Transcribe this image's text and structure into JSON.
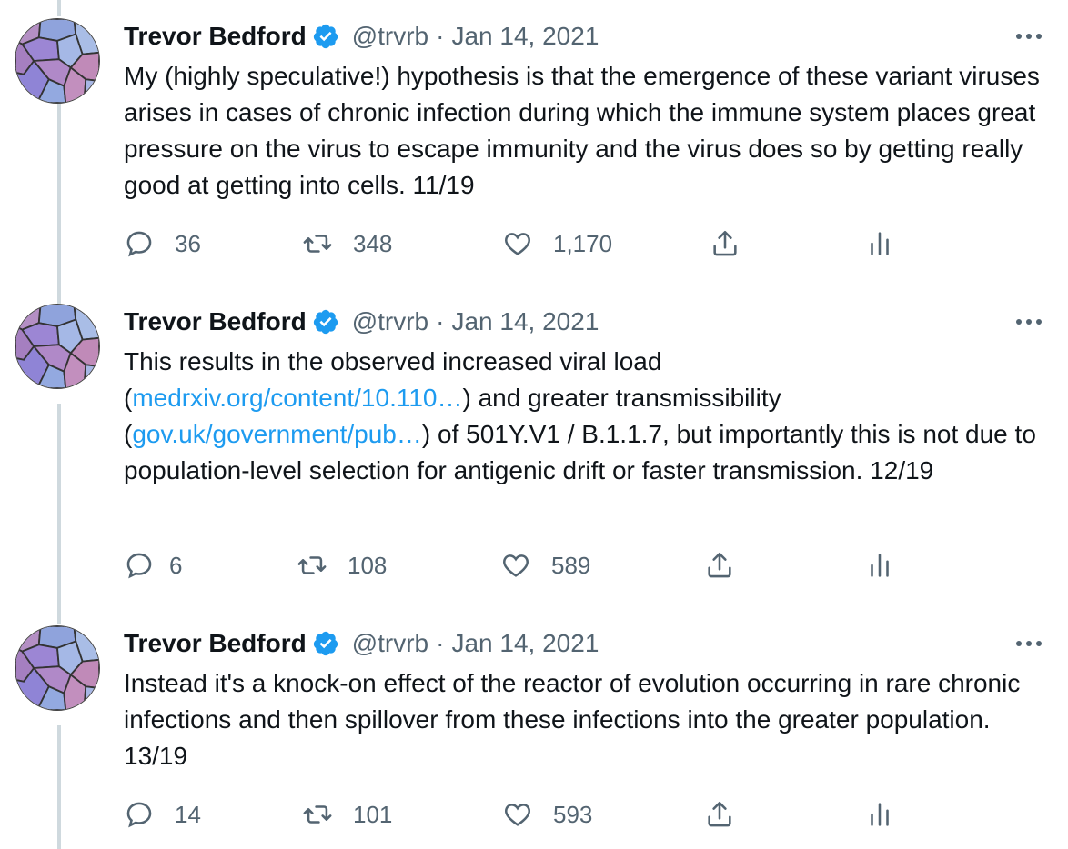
{
  "tweets": [
    {
      "author": "Trevor Bedford",
      "handle": "@trvrb",
      "separator": "·",
      "date": "Jan 14, 2021",
      "text": "My (highly speculative!) hypothesis is that the emergence of these variant viruses arises in cases of chronic infection during which the immune system places great pressure on the virus to escape immunity and the virus does so by getting really good at getting into cells. 11/19",
      "replies": "36",
      "retweets": "348",
      "likes": "1,170"
    },
    {
      "author": "Trevor Bedford",
      "handle": "@trvrb",
      "separator": "·",
      "date": "Jan 14, 2021",
      "text_parts": {
        "p1": "This results in the observed increased viral load",
        "p2": "(",
        "link1": "medrxiv.org/content/10.110…",
        "p3": ") and greater transmissibility",
        "p4": "(",
        "link2": "gov.uk/government/pub…",
        "p5": ") of 501Y.V1 / B.1.1.7, but importantly this is not due to population-level selection for antigenic drift or faster transmission. 12/19"
      },
      "replies": "6",
      "retweets": "108",
      "likes": "589"
    },
    {
      "author": "Trevor Bedford",
      "handle": "@trvrb",
      "separator": "·",
      "date": "Jan 14, 2021",
      "text": "Instead it's a knock-on effect of the reactor of evolution occurring in rare chronic infections and then spillover from these infections into the greater population. 13/19",
      "replies": "14",
      "retweets": "101",
      "likes": "593"
    }
  ],
  "icons": {
    "reply": "reply-icon",
    "retweet": "retweet-icon",
    "like": "heart-icon",
    "share": "share-icon",
    "analytics": "analytics-icon",
    "more": "more-icon",
    "verified": "verified-badge-icon"
  },
  "colors": {
    "text": "#0f1419",
    "muted": "#536471",
    "link": "#1d9bf0",
    "verified": "#1d9bf0",
    "thread_line": "#cfd9de"
  }
}
